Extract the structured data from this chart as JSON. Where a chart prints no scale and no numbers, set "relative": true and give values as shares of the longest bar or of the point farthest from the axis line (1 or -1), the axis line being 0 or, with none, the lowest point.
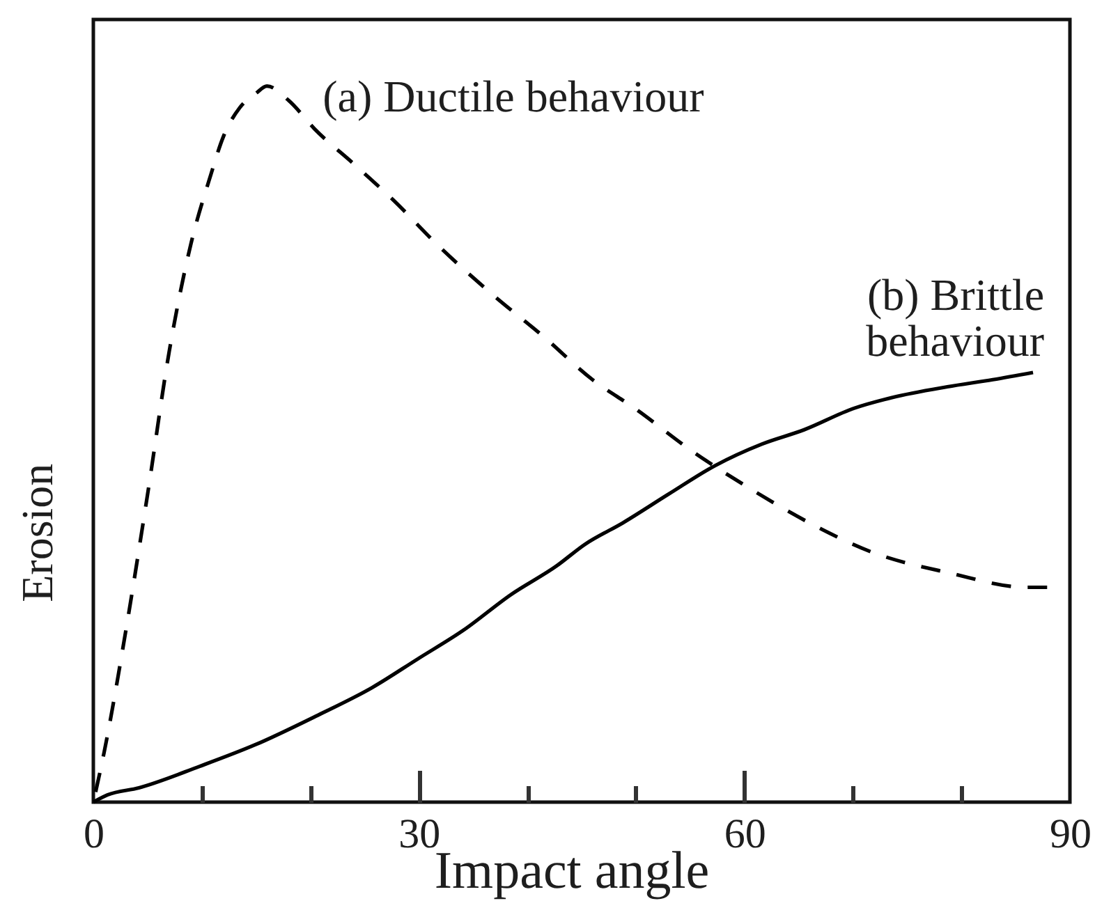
{
  "chart_data": {
    "type": "line",
    "relative": true,
    "xlabel": "Impact angle",
    "ylabel": "Erosion",
    "xlim": [
      0,
      90
    ],
    "xticks": [
      0,
      {
        "value": 10,
        "label": null
      },
      {
        "value": 20,
        "label": null
      },
      30,
      {
        "value": 40,
        "label": null
      },
      {
        "value": 50,
        "label": null
      },
      60,
      {
        "value": 70,
        "label": null
      },
      {
        "value": 80,
        "label": null
      },
      90
    ],
    "series": [
      {
        "name": "(a) Ductile behaviour",
        "color": "#000000",
        "line_style": "dashed",
        "x": [
          0,
          1.0,
          3.0,
          5.0,
          7.0,
          9.0,
          10.7,
          12.0,
          13.5,
          15.0,
          16.0,
          18.0,
          20.4,
          24.1,
          27.7,
          31.6,
          36.7,
          41.5,
          46.0,
          49.9,
          55.2,
          60.3,
          66.0,
          71.6,
          78.9,
          86.0,
          87.9
        ],
        "values": [
          0,
          0.07,
          0.24,
          0.43,
          0.63,
          0.78,
          0.87,
          0.93,
          0.97,
          0.99,
          1.0,
          0.98,
          0.94,
          0.89,
          0.84,
          0.78,
          0.71,
          0.65,
          0.59,
          0.55,
          0.49,
          0.44,
          0.39,
          0.35,
          0.32,
          0.3,
          0.3
        ]
      },
      {
        "name": "(b) Brittle behaviour",
        "color": "#000000",
        "line_style": "solid",
        "x": [
          0,
          1.3,
          4.2,
          9.8,
          14.9,
          20.5,
          25.7,
          29.9,
          34.1,
          38.5,
          42.7,
          45.3,
          48.8,
          53.0,
          57.3,
          61.6,
          65.5,
          70.1,
          73.6,
          78.7,
          82.9,
          86.6
        ],
        "values": [
          0,
          0.01,
          0.02,
          0.05,
          0.08,
          0.12,
          0.16,
          0.2,
          0.24,
          0.29,
          0.33,
          0.36,
          0.39,
          0.43,
          0.47,
          0.5,
          0.52,
          0.55,
          0.565,
          0.58,
          0.59,
          0.6
        ]
      }
    ]
  }
}
